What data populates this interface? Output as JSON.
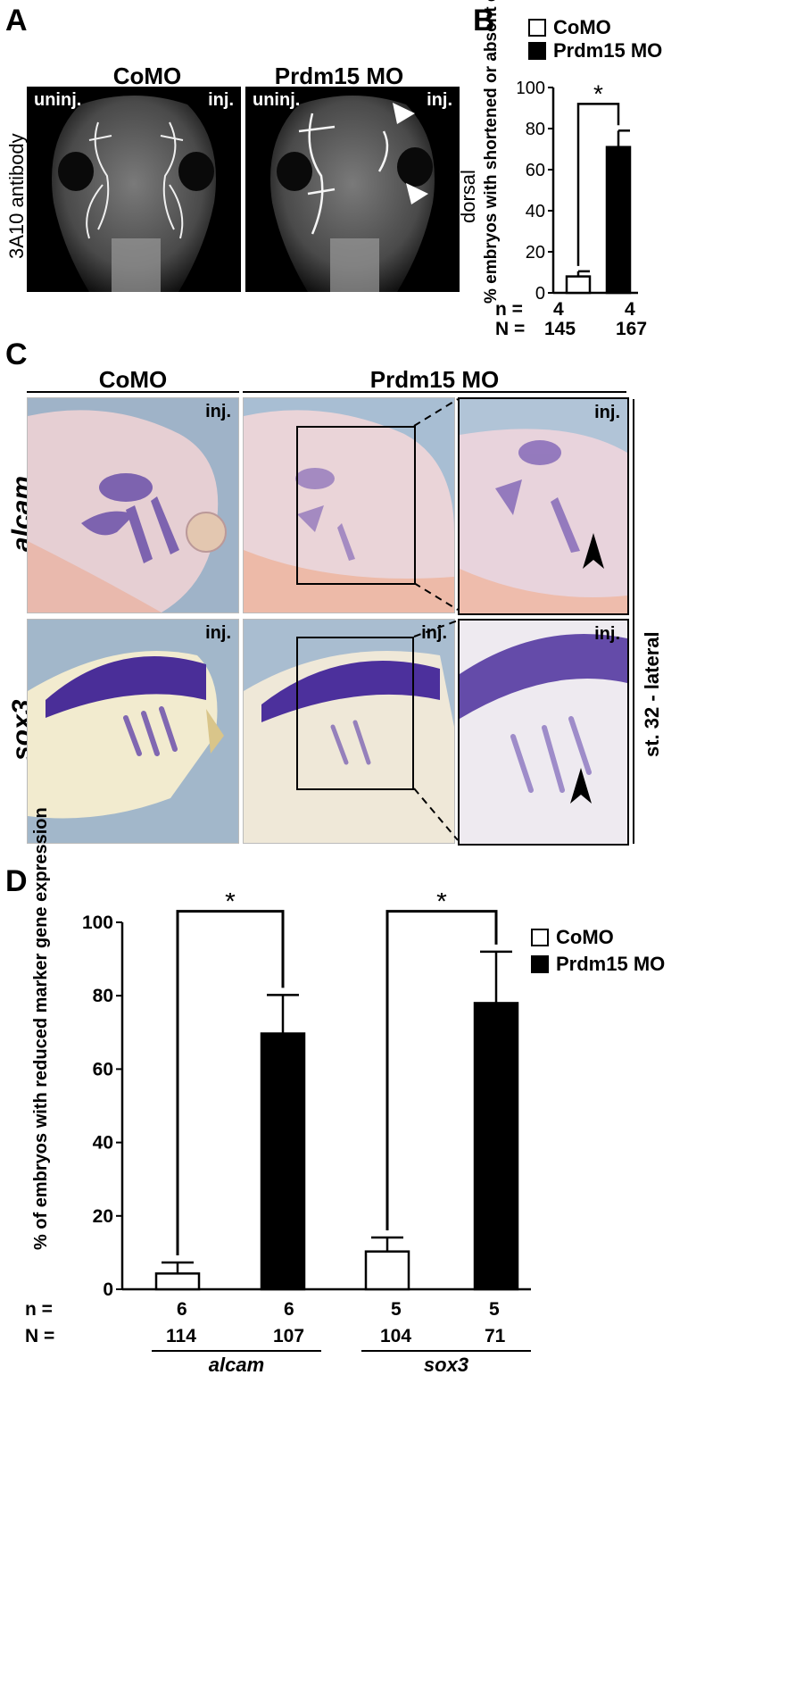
{
  "panelA": {
    "letter": "A",
    "ylabel": "3A10 antibody",
    "col_left": "CoMO",
    "col_right": "Prdm15 MO",
    "uninj": "uninj.",
    "inj": "inj.",
    "below": "dorsal"
  },
  "panelB": {
    "letter": "B",
    "legend": [
      {
        "label": "CoMO",
        "color": "#ffffff"
      },
      {
        "label": "Prdm15 MO",
        "color": "#000000"
      }
    ],
    "n_label": "n =",
    "N_label": "N =",
    "n_values": [
      "4",
      "4"
    ],
    "N_values": [
      "145",
      "167"
    ],
    "sig": "*"
  },
  "panelC": {
    "letter": "C",
    "col_left": "CoMO",
    "col_right": "Prdm15 MO",
    "row1_gene": "alcam",
    "row2_gene": "sox3",
    "inj": "inj.",
    "side_label": "st. 32 - lateral"
  },
  "panelD": {
    "letter": "D",
    "legend": [
      {
        "label": "CoMO",
        "color": "#ffffff"
      },
      {
        "label": "Prdm15 MO",
        "color": "#000000"
      }
    ],
    "n_label": "n =",
    "N_label": "N =",
    "n_values": [
      "6",
      "6",
      "5",
      "5"
    ],
    "N_values": [
      "114",
      "107",
      "104",
      "71"
    ],
    "groups": [
      "alcam",
      "sox3"
    ],
    "sig": "*"
  },
  "chart_data": [
    {
      "type": "bar",
      "panel": "B",
      "categories": [
        "CoMO",
        "Prdm15 MO"
      ],
      "values": [
        8,
        71
      ],
      "errors": [
        2.5,
        8
      ],
      "colors": [
        "#ffffff",
        "#000000"
      ],
      "ylabel": "% embryos with shortened or absent cranial nerves",
      "ylim": [
        0,
        100
      ],
      "yticks": [
        0,
        20,
        40,
        60,
        80,
        100
      ]
    },
    {
      "type": "bar",
      "panel": "D",
      "categories": [
        "alcam",
        "sox3"
      ],
      "series": [
        {
          "name": "CoMO",
          "values": [
            4.3,
            10.3
          ],
          "errors": [
            3,
            3.8
          ],
          "color": "#ffffff"
        },
        {
          "name": "Prdm15 MO",
          "values": [
            69.7,
            78
          ],
          "errors": [
            10.5,
            14
          ],
          "color": "#000000"
        }
      ],
      "ylabel": "% of embryos with reduced marker gene expression",
      "ylim": [
        0,
        100
      ],
      "yticks": [
        0,
        20,
        40,
        60,
        80,
        100
      ]
    }
  ]
}
